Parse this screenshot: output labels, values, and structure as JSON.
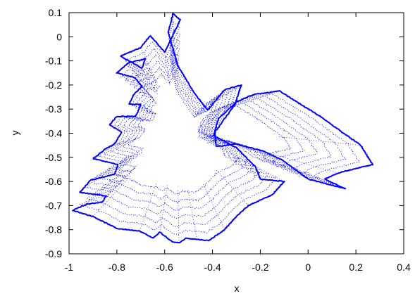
{
  "chart_data": {
    "type": "scatter",
    "title": "",
    "xlabel": "x",
    "ylabel": "y",
    "xlim": [
      -1,
      0.4
    ],
    "ylim": [
      -0.9,
      0.1
    ],
    "x_ticks": [
      "-1",
      "-0.8",
      "-0.6",
      "-0.4",
      "-0.2",
      "0",
      "0.2",
      "0.4"
    ],
    "y_ticks": [
      "0.1",
      "0",
      "-0.1",
      "-0.2",
      "-0.3",
      "-0.4",
      "-0.5",
      "-0.6",
      "-0.7",
      "-0.8",
      "-0.9"
    ],
    "x_tick_values": [
      -1,
      -0.8,
      -0.6,
      -0.4,
      -0.2,
      0,
      0.2,
      0.4
    ],
    "y_tick_values": [
      0.1,
      0,
      -0.1,
      -0.2,
      -0.3,
      -0.4,
      -0.5,
      -0.6,
      -0.7,
      -0.8,
      -0.9
    ],
    "grid": false,
    "legend": "none",
    "series_color": "#0000ff",
    "series": [
      {
        "outline_x": [
          -0.42,
          -0.475,
          -0.545,
          -0.585,
          -0.565,
          -0.535,
          -0.6,
          -0.66,
          -0.7,
          -0.785,
          -0.695,
          -0.68,
          -0.755,
          -0.8,
          -0.725,
          -0.695,
          -0.73,
          -0.75,
          -0.7,
          -0.72,
          -0.8,
          -0.83,
          -0.78,
          -0.81,
          -0.84,
          -0.9,
          -0.795,
          -0.81,
          -0.91,
          -0.955,
          -0.845,
          -0.86,
          -0.93,
          -0.985,
          -0.9,
          -0.8,
          -0.705,
          -0.65,
          -0.62,
          -0.57,
          -0.54,
          -0.51,
          -0.465,
          -0.415,
          -0.35,
          -0.3,
          -0.25,
          -0.15,
          -0.1,
          -0.2,
          -0.22,
          -0.3,
          -0.395,
          -0.375,
          -0.3,
          -0.23,
          -0.12,
          0.05,
          0.22,
          0.27,
          0.125,
          0.07,
          0.155,
          0.0,
          -0.11,
          -0.185,
          -0.3,
          -0.385,
          -0.39,
          -0.305,
          -0.28,
          -0.35,
          -0.42
        ],
        "outline_y": [
          -0.305,
          -0.235,
          -0.12,
          0.02,
          0.095,
          0.07,
          -0.065,
          0.005,
          -0.045,
          -0.08,
          -0.13,
          -0.09,
          -0.11,
          -0.15,
          -0.17,
          -0.205,
          -0.24,
          -0.28,
          -0.28,
          -0.33,
          -0.33,
          -0.365,
          -0.395,
          -0.445,
          -0.46,
          -0.505,
          -0.53,
          -0.57,
          -0.595,
          -0.645,
          -0.66,
          -0.685,
          -0.695,
          -0.72,
          -0.745,
          -0.795,
          -0.805,
          -0.835,
          -0.81,
          -0.85,
          -0.855,
          -0.835,
          -0.84,
          -0.845,
          -0.8,
          -0.745,
          -0.7,
          -0.655,
          -0.6,
          -0.59,
          -0.54,
          -0.46,
          -0.41,
          -0.34,
          -0.27,
          -0.24,
          -0.225,
          -0.33,
          -0.45,
          -0.53,
          -0.565,
          -0.59,
          -0.63,
          -0.59,
          -0.51,
          -0.475,
          -0.445,
          -0.455,
          -0.395,
          -0.28,
          -0.2,
          -0.22,
          -0.305
        ]
      }
    ]
  }
}
